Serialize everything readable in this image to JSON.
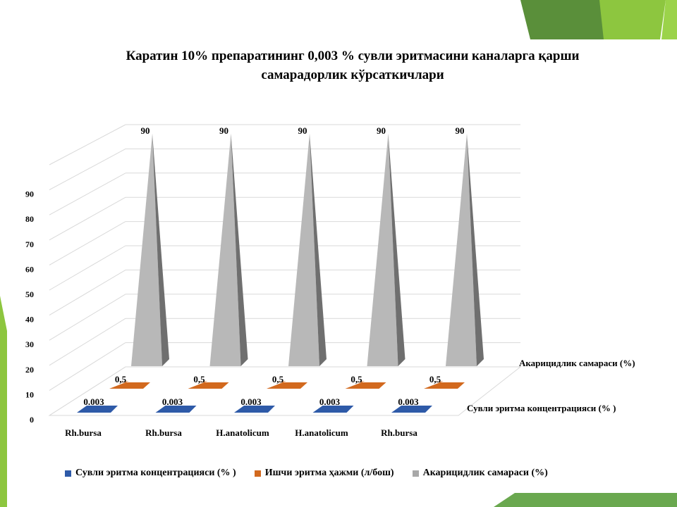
{
  "colors": {
    "accent_green": "#6aa84f",
    "accent_lime": "#8dc63f",
    "dark_green": "#4f7f36"
  },
  "chart_data": {
    "type": "bar",
    "subtype": "3d-pyramid",
    "title": "Каратин 10% препаратининг 0,003 % сувли эритмасини каналарга қарши самарадорлик кўрсаткичлари",
    "title_lines": [
      "Каратин 10% препаратининг 0,003 % сувли эритмасини каналарга қарши",
      "самарадорлик кўрсаткичлари"
    ],
    "categories": [
      "Rh.bursa",
      "Rh.bursa",
      "H.anatolicum",
      "H.anatolicum",
      "Rh.bursa"
    ],
    "series": [
      {
        "name": "Сувли эритма концентрацияси (% )",
        "depth_label": "Сувли эритма концентрацияси (% )",
        "color": "#2e5aa8",
        "values": [
          0.003,
          0.003,
          0.003,
          0.003,
          0.003
        ],
        "labels": [
          "0.003",
          "0.003",
          "0.003",
          "0.003",
          "0.003"
        ]
      },
      {
        "name": "Ишчи эритма ҳажми (л/бош)",
        "depth_label": "",
        "color": "#d2691e",
        "values": [
          0.5,
          0.5,
          0.5,
          0.5,
          0.5
        ],
        "labels": [
          "0,5",
          "0,5",
          "0,5",
          "0,5",
          "0,5"
        ]
      },
      {
        "name": "Акарицидлик самараси  (%)",
        "depth_label": "Акарицидлик самараси  (%)",
        "color": "#a8a8a8",
        "values": [
          90,
          90,
          90,
          90,
          90
        ],
        "labels": [
          "90",
          "90",
          "90",
          "90",
          "90"
        ]
      }
    ],
    "y_ticks": [
      "0",
      "10",
      "20",
      "30",
      "40",
      "50",
      "60",
      "70",
      "80",
      "90"
    ],
    "ylim": [
      0,
      100
    ],
    "grid": true,
    "legend_position": "bottom"
  }
}
